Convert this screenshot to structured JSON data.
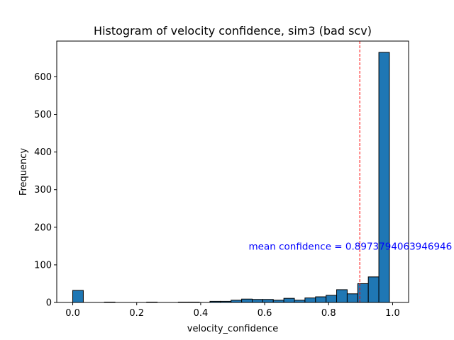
{
  "chart_data": {
    "type": "bar",
    "title": "Histogram of velocity confidence, sim3 (bad scv)",
    "xlabel": "velocity_confidence",
    "ylabel": "Frequency",
    "xlim": [
      -0.05,
      1.05
    ],
    "ylim": [
      0,
      695
    ],
    "xticks": [
      0.0,
      0.2,
      0.4,
      0.6,
      0.8,
      1.0
    ],
    "xtick_labels": [
      "0.0",
      "0.2",
      "0.4",
      "0.6",
      "0.8",
      "1.0"
    ],
    "yticks": [
      0,
      100,
      200,
      300,
      400,
      500,
      600
    ],
    "ytick_labels": [
      "0",
      "100",
      "200",
      "300",
      "400",
      "500",
      "600"
    ],
    "grid": false,
    "legend": "none",
    "bar_color": "#1f77b4",
    "bar_edge_color": "#000000",
    "bins": [
      {
        "x0": 0.0,
        "x1": 0.033,
        "count": 32
      },
      {
        "x0": 0.033,
        "x1": 0.066,
        "count": 0
      },
      {
        "x0": 0.066,
        "x1": 0.099,
        "count": 0
      },
      {
        "x0": 0.099,
        "x1": 0.132,
        "count": 1
      },
      {
        "x0": 0.132,
        "x1": 0.165,
        "count": 0
      },
      {
        "x0": 0.165,
        "x1": 0.198,
        "count": 0
      },
      {
        "x0": 0.198,
        "x1": 0.231,
        "count": 0
      },
      {
        "x0": 0.231,
        "x1": 0.264,
        "count": 1
      },
      {
        "x0": 0.264,
        "x1": 0.297,
        "count": 0
      },
      {
        "x0": 0.297,
        "x1": 0.33,
        "count": 0
      },
      {
        "x0": 0.33,
        "x1": 0.363,
        "count": 1
      },
      {
        "x0": 0.363,
        "x1": 0.396,
        "count": 1
      },
      {
        "x0": 0.396,
        "x1": 0.429,
        "count": 0
      },
      {
        "x0": 0.429,
        "x1": 0.462,
        "count": 3
      },
      {
        "x0": 0.462,
        "x1": 0.495,
        "count": 3
      },
      {
        "x0": 0.495,
        "x1": 0.528,
        "count": 6
      },
      {
        "x0": 0.528,
        "x1": 0.561,
        "count": 9
      },
      {
        "x0": 0.561,
        "x1": 0.594,
        "count": 8
      },
      {
        "x0": 0.594,
        "x1": 0.627,
        "count": 8
      },
      {
        "x0": 0.627,
        "x1": 0.66,
        "count": 6
      },
      {
        "x0": 0.66,
        "x1": 0.693,
        "count": 11
      },
      {
        "x0": 0.693,
        "x1": 0.726,
        "count": 6
      },
      {
        "x0": 0.726,
        "x1": 0.759,
        "count": 12
      },
      {
        "x0": 0.759,
        "x1": 0.792,
        "count": 15
      },
      {
        "x0": 0.792,
        "x1": 0.825,
        "count": 19
      },
      {
        "x0": 0.825,
        "x1": 0.858,
        "count": 34
      },
      {
        "x0": 0.858,
        "x1": 0.891,
        "count": 23
      },
      {
        "x0": 0.891,
        "x1": 0.924,
        "count": 50
      },
      {
        "x0": 0.924,
        "x1": 0.957,
        "count": 68
      },
      {
        "x0": 0.957,
        "x1": 0.99,
        "count": 665
      }
    ],
    "mean_line": {
      "value": 0.8973794063946946,
      "color": "#ff0000",
      "style": "dashed"
    },
    "annotation": {
      "text": "mean confidence = 0.8973794063946946",
      "color": "#0000ff",
      "x": 0.55,
      "y": 150
    }
  }
}
